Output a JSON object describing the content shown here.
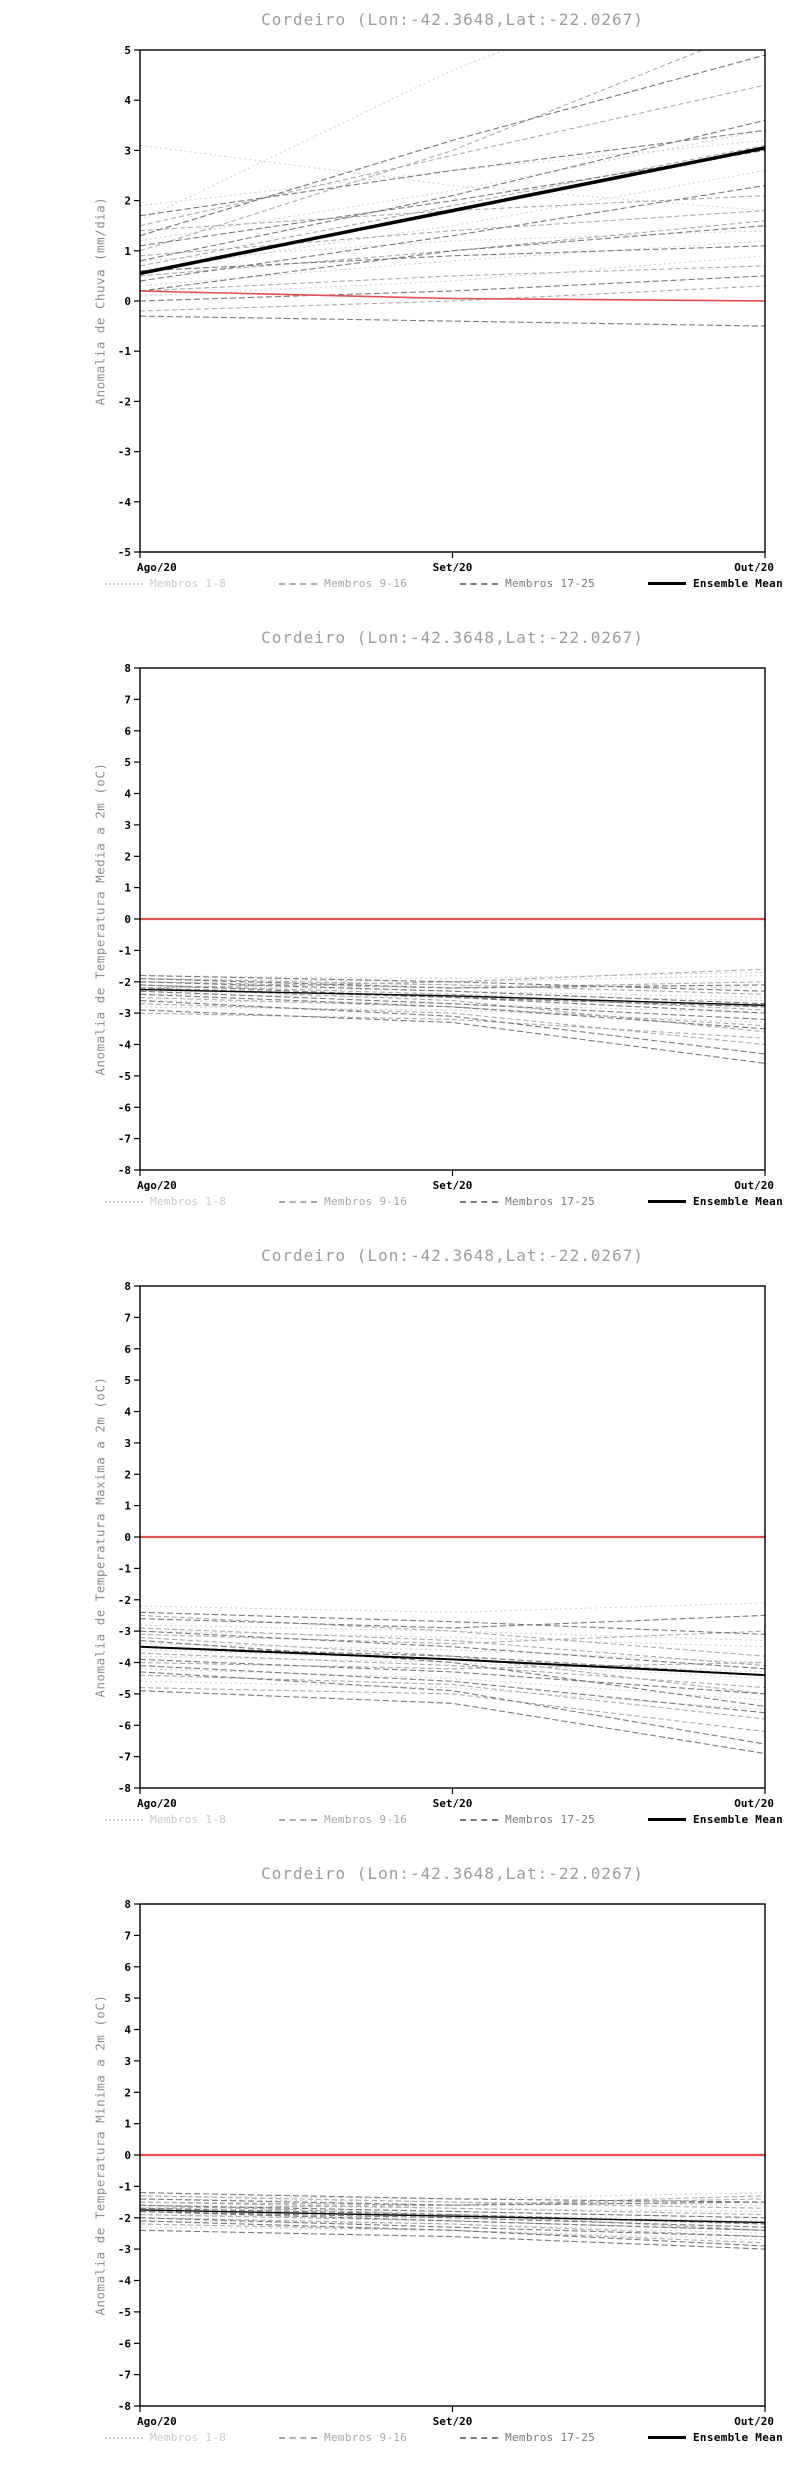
{
  "colors": {
    "title": "#9c9c9c",
    "axis": "#000000",
    "ylabel": "#8e8e8e",
    "members_1_8": "#d2d2d2",
    "members_9_16": "#ababab",
    "members_17_25": "#7a7a7a",
    "ensemble_mean": "#000000",
    "zero_line": "#e05050"
  },
  "legend": [
    {
      "label": "Membros 1-8",
      "style": "dotted"
    },
    {
      "label": "Membros 9-16",
      "style": "dashed"
    },
    {
      "label": "Membros 17-25",
      "style": "dashed"
    },
    {
      "label": "Ensemble Mean",
      "style": "solid"
    }
  ],
  "chart_data": [
    {
      "type": "line",
      "title": "Cordeiro (Lon:-42.3648,Lat:-22.0267)",
      "ylabel": "Anomalia de Chuva (mm/dia)",
      "categories": [
        "Ago/20",
        "Set/20",
        "Out/20"
      ],
      "ylim": [
        -5,
        5
      ],
      "ytick_step": 1,
      "zero_line": [
        0.2,
        0.05,
        0.0
      ],
      "zero_line_width": 1.6,
      "ensemble_mean": [
        0.55,
        1.8,
        3.05
      ],
      "mean_width": 3.5,
      "groups": [
        {
          "name": "Membros 1-8",
          "members": [
            [
              0.6,
              1.5,
              2.6
            ],
            [
              1.2,
              2.2,
              3.4
            ],
            [
              0.3,
              0.8,
              1.2
            ],
            [
              1.6,
              4.6,
              7.0
            ],
            [
              0.1,
              0.4,
              0.9
            ],
            [
              0.8,
              1.2,
              1.4
            ],
            [
              1.9,
              2.6,
              3.2
            ],
            [
              3.1,
              2.3,
              1.8
            ]
          ]
        },
        {
          "name": "Membros 9-16",
          "members": [
            [
              0.5,
              1.0,
              1.6
            ],
            [
              1.0,
              3.0,
              5.5
            ],
            [
              0.2,
              0.5,
              0.7
            ],
            [
              1.4,
              1.8,
              2.1
            ],
            [
              0.7,
              1.9,
              3.1
            ],
            [
              -0.2,
              0.0,
              0.3
            ],
            [
              0.9,
              1.4,
              1.8
            ],
            [
              1.5,
              2.9,
              4.3
            ]
          ]
        },
        {
          "name": "Membros 17-25",
          "members": [
            [
              0.4,
              1.3,
              2.3
            ],
            [
              1.1,
              2.0,
              3.0
            ],
            [
              0.0,
              0.2,
              0.5
            ],
            [
              1.3,
              3.2,
              4.9
            ],
            [
              0.6,
              0.9,
              1.1
            ],
            [
              -0.3,
              -0.4,
              -0.5
            ],
            [
              0.8,
              2.1,
              3.6
            ],
            [
              1.7,
              2.6,
              3.4
            ],
            [
              0.2,
              1.0,
              1.5
            ]
          ]
        }
      ]
    },
    {
      "type": "line",
      "title": "Cordeiro (Lon:-42.3648,Lat:-22.0267)",
      "ylabel": "Anomalia de Temperatura Media a 2m (oC)",
      "categories": [
        "Ago/20",
        "Set/20",
        "Out/20"
      ],
      "ylim": [
        -8,
        8
      ],
      "ytick_step": 1,
      "zero_line": [
        0,
        0,
        0
      ],
      "zero_line_width": 2.2,
      "ensemble_mean": [
        -2.25,
        -2.45,
        -2.75
      ],
      "mean_width": 1.4,
      "groups": [
        {
          "name": "Membros 1-8",
          "members": [
            [
              -2.0,
              -2.1,
              -2.2
            ],
            [
              -2.3,
              -2.4,
              -2.6
            ],
            [
              -1.9,
              -2.0,
              -1.8
            ],
            [
              -2.6,
              -2.7,
              -3.0
            ],
            [
              -2.1,
              -2.3,
              -2.5
            ],
            [
              -2.8,
              -2.9,
              -3.3
            ],
            [
              -1.8,
              -1.9,
              -1.7
            ],
            [
              -2.4,
              -2.5,
              -2.8
            ]
          ]
        },
        {
          "name": "Membros 9-16",
          "members": [
            [
              -2.2,
              -2.6,
              -3.6
            ],
            [
              -2.0,
              -2.2,
              -2.0
            ],
            [
              -2.7,
              -3.0,
              -4.0
            ],
            [
              -1.9,
              -2.1,
              -2.4
            ],
            [
              -2.5,
              -2.8,
              -3.4
            ],
            [
              -2.2,
              -2.0,
              -1.6
            ],
            [
              -3.0,
              -3.2,
              -3.8
            ],
            [
              -2.1,
              -2.4,
              -2.9
            ]
          ]
        },
        {
          "name": "Membros 17-25",
          "members": [
            [
              -2.3,
              -2.7,
              -3.2
            ],
            [
              -1.8,
              -2.0,
              -2.3
            ],
            [
              -2.6,
              -3.1,
              -4.3
            ],
            [
              -2.0,
              -2.3,
              -2.7
            ],
            [
              -2.9,
              -3.3,
              -4.6
            ],
            [
              -2.2,
              -2.5,
              -3.0
            ],
            [
              -1.9,
              -2.2,
              -2.1
            ],
            [
              -2.4,
              -2.8,
              -3.5
            ],
            [
              -2.1,
              -2.5,
              -2.8
            ]
          ]
        }
      ]
    },
    {
      "type": "line",
      "title": "Cordeiro (Lon:-42.3648,Lat:-22.0267)",
      "ylabel": "Anomalia de Temperatura Maxima a 2m (oC)",
      "categories": [
        "Ago/20",
        "Set/20",
        "Out/20"
      ],
      "ylim": [
        -8,
        8
      ],
      "ytick_step": 1,
      "zero_line": [
        0,
        0,
        0
      ],
      "zero_line_width": 2.2,
      "ensemble_mean": [
        -3.5,
        -3.9,
        -4.4
      ],
      "mean_width": 2.0,
      "groups": [
        {
          "name": "Membros 1-8",
          "members": [
            [
              -3.0,
              -3.2,
              -3.5
            ],
            [
              -3.8,
              -4.0,
              -4.5
            ],
            [
              -2.2,
              -2.4,
              -2.1
            ],
            [
              -4.2,
              -4.5,
              -5.2
            ],
            [
              -3.4,
              -3.6,
              -4.0
            ],
            [
              -4.6,
              -4.8,
              -5.5
            ],
            [
              -2.8,
              -3.0,
              -3.3
            ],
            [
              -3.6,
              -3.9,
              -4.3
            ]
          ]
        },
        {
          "name": "Membros 9-16",
          "members": [
            [
              -3.2,
              -3.8,
              -5.0
            ],
            [
              -4.0,
              -4.2,
              -4.0
            ],
            [
              -2.5,
              -3.0,
              -3.8
            ],
            [
              -4.4,
              -4.7,
              -5.8
            ],
            [
              -3.1,
              -3.4,
              -3.0
            ],
            [
              -4.8,
              -5.0,
              -6.2
            ],
            [
              -2.9,
              -3.3,
              -4.1
            ],
            [
              -3.7,
              -4.1,
              -4.8
            ]
          ]
        },
        {
          "name": "Membros 17-25",
          "members": [
            [
              -3.3,
              -4.0,
              -5.4
            ],
            [
              -2.6,
              -2.9,
              -2.5
            ],
            [
              -4.3,
              -4.9,
              -6.6
            ],
            [
              -3.5,
              -3.8,
              -4.4
            ],
            [
              -4.9,
              -5.3,
              -6.9
            ],
            [
              -3.0,
              -3.5,
              -4.2
            ],
            [
              -2.4,
              -2.7,
              -3.1
            ],
            [
              -4.1,
              -4.6,
              -5.6
            ],
            [
              -3.9,
              -4.3,
              -5.0
            ]
          ]
        }
      ]
    },
    {
      "type": "line",
      "title": "Cordeiro (Lon:-42.3648,Lat:-22.0267)",
      "ylabel": "Anomalia de Temperatura Minima a 2m (oC)",
      "categories": [
        "Ago/20",
        "Set/20",
        "Out/20"
      ],
      "ylim": [
        -8,
        8
      ],
      "ytick_step": 1,
      "zero_line": [
        0,
        0,
        0
      ],
      "zero_line_width": 2.2,
      "ensemble_mean": [
        -1.75,
        -1.95,
        -2.15
      ],
      "mean_width": 1.4,
      "groups": [
        {
          "name": "Membros 1-8",
          "members": [
            [
              -1.6,
              -1.7,
              -1.8
            ],
            [
              -1.9,
              -2.0,
              -2.2
            ],
            [
              -1.3,
              -1.4,
              -1.2
            ],
            [
              -2.1,
              -2.2,
              -2.5
            ],
            [
              -1.7,
              -1.8,
              -2.0
            ],
            [
              -2.3,
              -2.4,
              -2.7
            ],
            [
              -1.4,
              -1.5,
              -1.6
            ],
            [
              -1.8,
              -1.9,
              -2.1
            ]
          ]
        },
        {
          "name": "Membros 9-16",
          "members": [
            [
              -1.6,
              -1.9,
              -2.4
            ],
            [
              -1.5,
              -1.6,
              -1.4
            ],
            [
              -2.0,
              -2.2,
              -2.6
            ],
            [
              -1.3,
              -1.5,
              -1.7
            ],
            [
              -1.9,
              -2.1,
              -2.4
            ],
            [
              -1.7,
              -1.6,
              -1.3
            ],
            [
              -2.2,
              -2.4,
              -2.8
            ],
            [
              -1.5,
              -1.7,
              -1.9
            ]
          ]
        },
        {
          "name": "Membros 17-25",
          "members": [
            [
              -1.8,
              -2.0,
              -2.3
            ],
            [
              -1.2,
              -1.4,
              -1.5
            ],
            [
              -2.1,
              -2.4,
              -2.9
            ],
            [
              -1.6,
              -1.8,
              -2.0
            ],
            [
              -2.4,
              -2.6,
              -3.0
            ],
            [
              -1.7,
              -1.9,
              -2.2
            ],
            [
              -1.4,
              -1.6,
              -1.5
            ],
            [
              -2.0,
              -2.3,
              -2.6
            ],
            [
              -1.8,
              -2.1,
              -2.4
            ]
          ]
        }
      ]
    }
  ]
}
